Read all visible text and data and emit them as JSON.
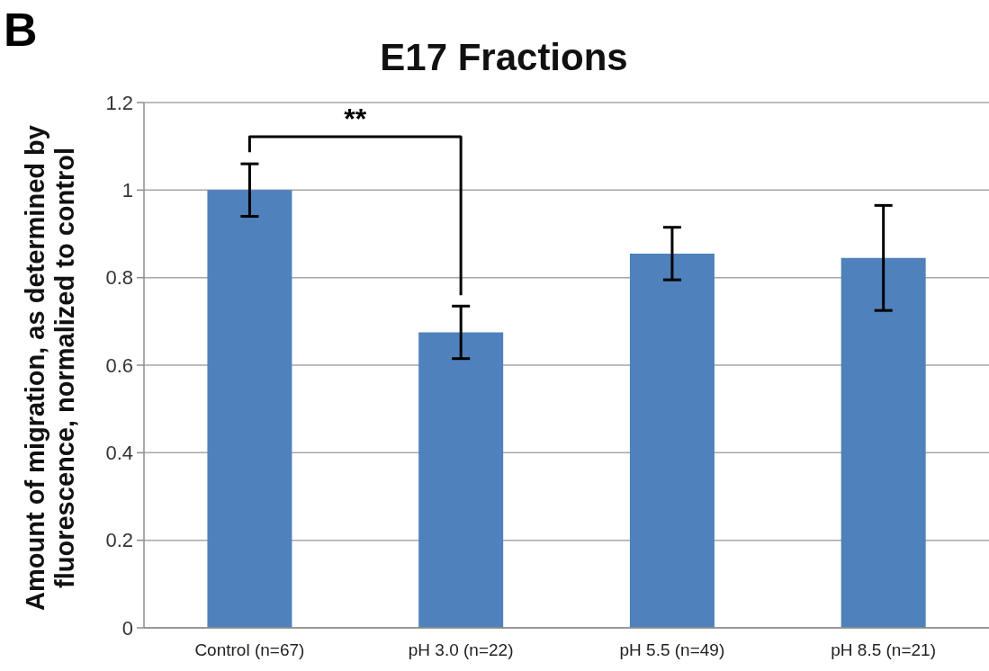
{
  "chart_data": {
    "type": "bar",
    "title": "E17 Fractions",
    "ylabel": "Amount of migration, as determined by fluorescence, normalized to control",
    "categories": [
      "Control (n=67)",
      "pH 3.0 (n=22)",
      "pH 5.5 (n=49)",
      "pH 8.5 (n=21)"
    ],
    "values": [
      1,
      0.675,
      0.855,
      0.845
    ],
    "errors": [
      0.06,
      0.06,
      0.06,
      0.12
    ],
    "color": "#4f81bd",
    "ylim": [
      0,
      1.2
    ],
    "yticks": [
      0,
      0.2,
      0.4,
      0.6,
      0.8,
      1,
      1.2
    ],
    "grid": "y",
    "annotations": [
      "B",
      "**"
    ]
  }
}
